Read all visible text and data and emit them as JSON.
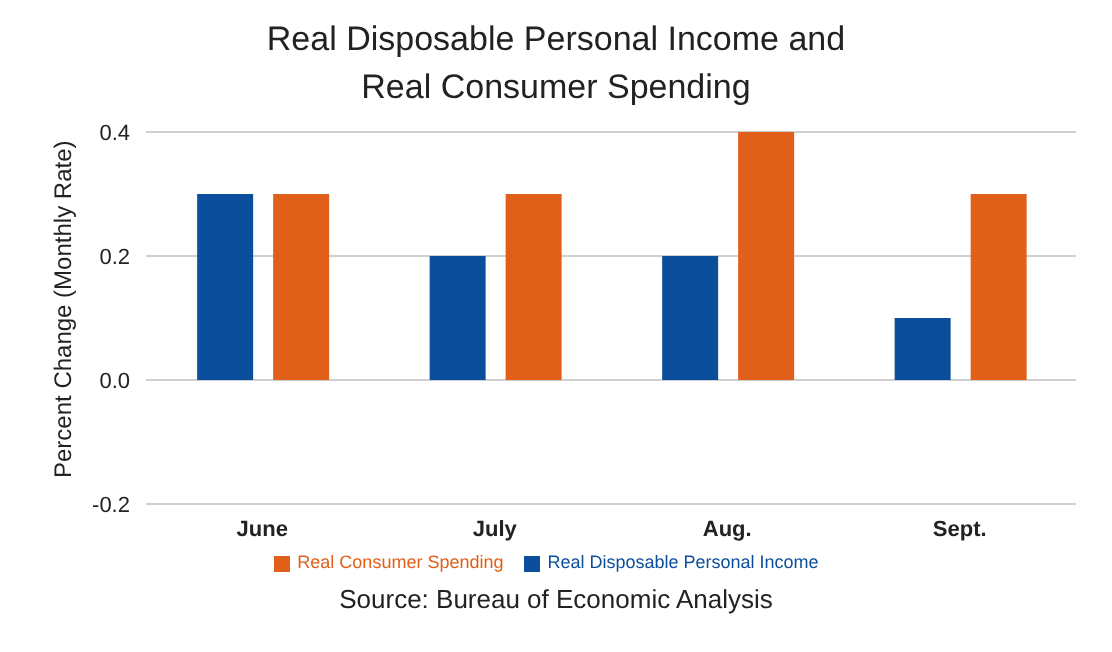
{
  "chart_data": {
    "type": "bar",
    "title": "Real Disposable Personal Income and Real Consumer Spending",
    "ylabel": "Percent Change (Monthly Rate)",
    "categories": [
      "June",
      "July",
      "Aug.",
      "Sept."
    ],
    "series": [
      {
        "name": "Real Disposable Personal Income",
        "color": "#0b4f9c",
        "values": [
          0.3,
          0.2,
          0.2,
          0.1
        ]
      },
      {
        "name": "Real Consumer Spending",
        "color": "#e0601a",
        "values": [
          0.3,
          0.3,
          0.4,
          0.3
        ]
      }
    ],
    "ylim": [
      -0.2,
      0.4
    ],
    "yticks": [
      -0.2,
      {
        "value": 0,
        "label": "0.0"
      },
      0.2,
      0.4
    ],
    "grid": "y",
    "legend": "bottom",
    "annotations": [
      "Source:  Bureau of Economic Analysis"
    ]
  }
}
